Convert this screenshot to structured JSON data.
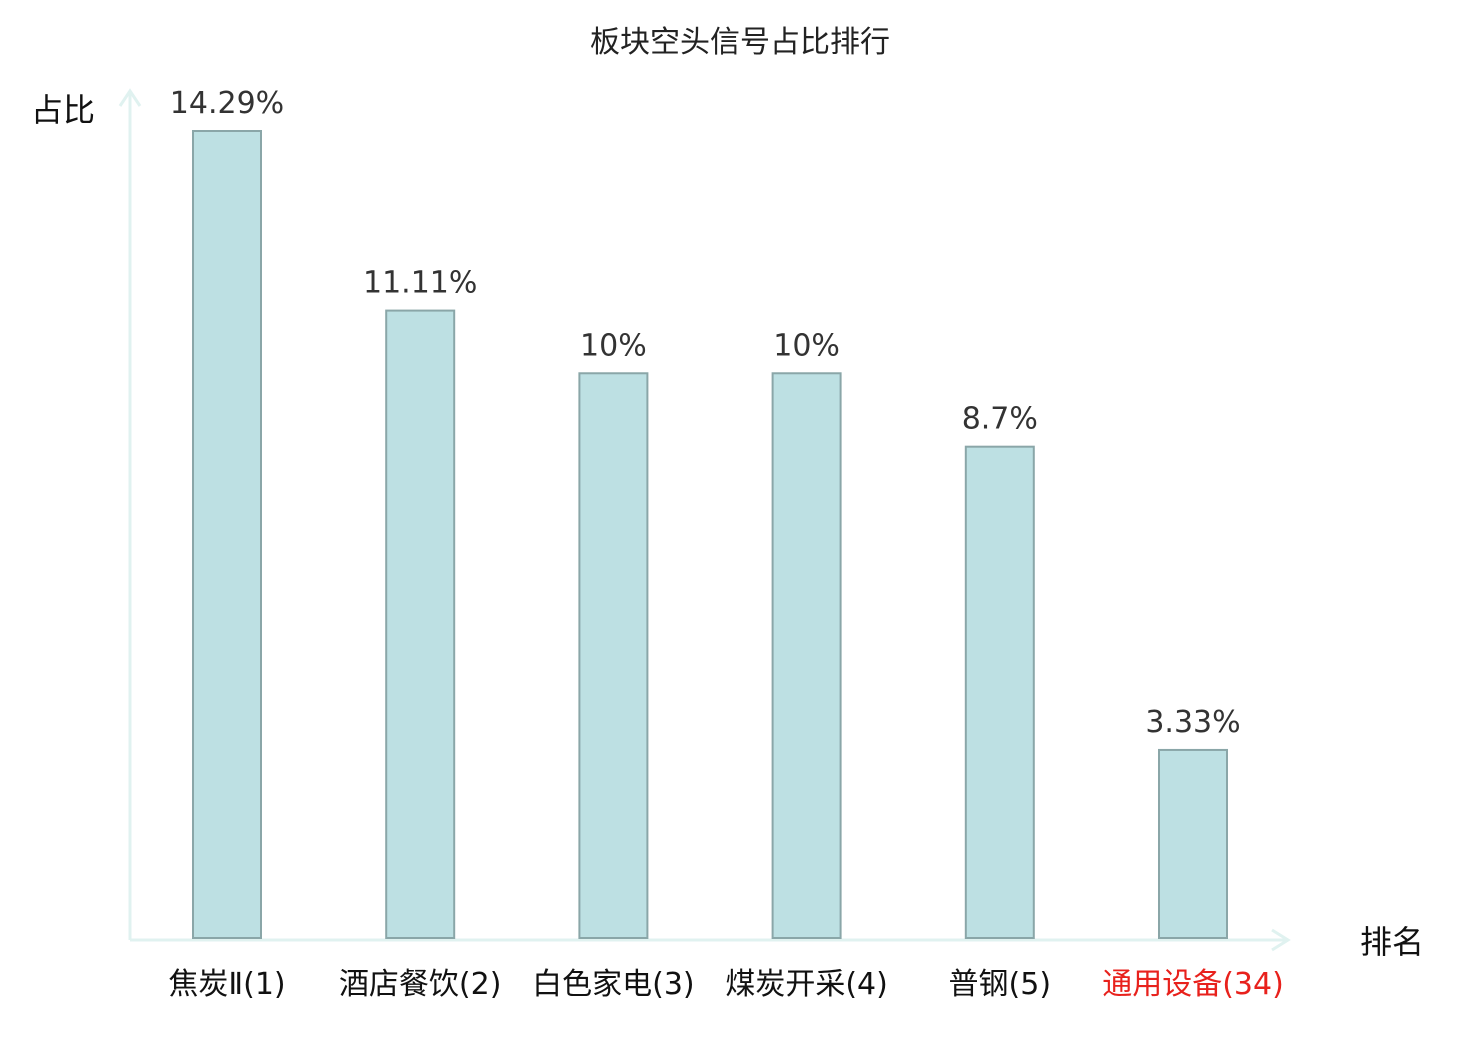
{
  "chart_data": {
    "type": "bar",
    "title": "板块空头信号占比排行",
    "ylabel": "占比",
    "xlabel": "排名",
    "categories": [
      "焦炭Ⅱ(1)",
      "酒店餐饮(2)",
      "白色家电(3)",
      "煤炭开采(4)",
      "普钢(5)",
      "通用设备(34)"
    ],
    "values": [
      14.29,
      11.11,
      10,
      10,
      8.7,
      3.33
    ],
    "value_labels": [
      "14.29%",
      "11.11%",
      "10%",
      "10%",
      "8.7%",
      "3.33%"
    ],
    "highlight_index": 5,
    "ylim": [
      0,
      14.29
    ],
    "grid": false,
    "colors": {
      "bar_fill": "#bde0e3",
      "bar_stroke": "#8aa6a8",
      "axis": "#e0f2f0",
      "label_default": "#111111",
      "label_highlight": "#e8211c"
    }
  }
}
